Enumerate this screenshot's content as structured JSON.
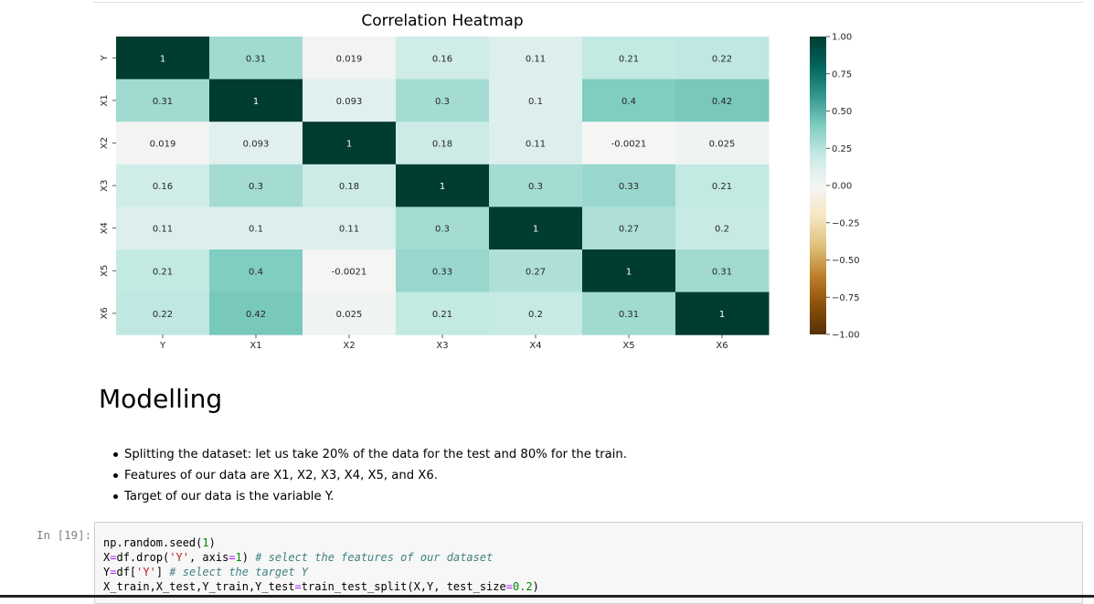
{
  "chart_data": {
    "type": "heatmap",
    "title": "Correlation Heatmap",
    "x_labels": [
      "Y",
      "X1",
      "X2",
      "X3",
      "X4",
      "X5",
      "X6"
    ],
    "y_labels": [
      "Y",
      "X1",
      "X2",
      "X3",
      "X4",
      "X5",
      "X6"
    ],
    "matrix": [
      [
        1,
        0.31,
        0.019,
        0.16,
        0.11,
        0.21,
        0.22
      ],
      [
        0.31,
        1,
        0.093,
        0.3,
        0.1,
        0.4,
        0.42
      ],
      [
        0.019,
        0.093,
        1,
        0.18,
        0.11,
        -0.0021,
        0.025
      ],
      [
        0.16,
        0.3,
        0.18,
        1,
        0.3,
        0.33,
        0.21
      ],
      [
        0.11,
        0.1,
        0.11,
        0.3,
        1,
        0.27,
        0.2
      ],
      [
        0.21,
        0.4,
        -0.0021,
        0.33,
        0.27,
        1,
        0.31
      ],
      [
        0.22,
        0.42,
        0.025,
        0.21,
        0.2,
        0.31,
        1
      ]
    ],
    "annotations": [
      [
        "1",
        "0.31",
        "0.019",
        "0.16",
        "0.11",
        "0.21",
        "0.22"
      ],
      [
        "0.31",
        "1",
        "0.093",
        "0.3",
        "0.1",
        "0.4",
        "0.42"
      ],
      [
        "0.019",
        "0.093",
        "1",
        "0.18",
        "0.11",
        "-0.0021",
        "0.025"
      ],
      [
        "0.16",
        "0.3",
        "0.18",
        "1",
        "0.3",
        "0.33",
        "0.21"
      ],
      [
        "0.11",
        "0.1",
        "0.11",
        "0.3",
        "1",
        "0.27",
        "0.2"
      ],
      [
        "0.21",
        "0.4",
        "-0.0021",
        "0.33",
        "0.27",
        "1",
        "0.31"
      ],
      [
        "0.22",
        "0.42",
        "0.025",
        "0.21",
        "0.2",
        "0.31",
        "1"
      ]
    ],
    "vmin": -1,
    "vmax": 1,
    "colormap": "BrBG",
    "colormap_stops": [
      "#543005",
      "#8c510a",
      "#bf812d",
      "#dfc27d",
      "#f6e8c3",
      "#f5f5f5",
      "#c7eae5",
      "#80cdc1",
      "#35978f",
      "#01665e",
      "#003c30"
    ],
    "colorbar_ticks": [
      "1.00",
      "0.75",
      "0.50",
      "0.25",
      "0.00",
      "−0.25",
      "−0.50",
      "−0.75",
      "−1.00"
    ],
    "colorbar_tick_values": [
      1,
      0.75,
      0.5,
      0.25,
      0,
      -0.25,
      -0.5,
      -0.75,
      -1
    ]
  },
  "markdown": {
    "heading": "Modelling",
    "bullets": [
      "Splitting the dataset: let us take 20% of the data for the test and 80% for the train.",
      "Features of our data are X1, X2, X3, X4, X5, and X6.",
      "Target of our data is the variable Y."
    ]
  },
  "code_cell": {
    "prompt": "In [19]:",
    "lines": [
      "np.random.seed(1)",
      "X=df.drop('Y', axis=1) # select the features of our dataset",
      "Y=df['Y'] # select the target Y",
      "X_train,X_test,Y_train,Y_test=train_test_split(X,Y, test_size=0.2)"
    ],
    "segments": {
      "l1_a": "np.random.seed(",
      "l1_num": "1",
      "l1_b": ")",
      "l2_a": "X",
      "l2_eq": "=",
      "l2_b": "df.drop(",
      "l2_str": "'Y'",
      "l2_c": ", axis",
      "l2_eq2": "=",
      "l2_num": "1",
      "l2_d": ") ",
      "l2_com": "# select the features of our dataset",
      "l3_a": "Y",
      "l3_eq": "=",
      "l3_b": "df[",
      "l3_str": "'Y'",
      "l3_c": "] ",
      "l3_com": "# select the target Y",
      "l4_a": "X_train,X_test,Y_train,Y_test",
      "l4_eq": "=",
      "l4_b": "train_test_split(X,Y, test_size",
      "l4_eq2": "=",
      "l4_num": "0.2",
      "l4_c": ")"
    }
  }
}
